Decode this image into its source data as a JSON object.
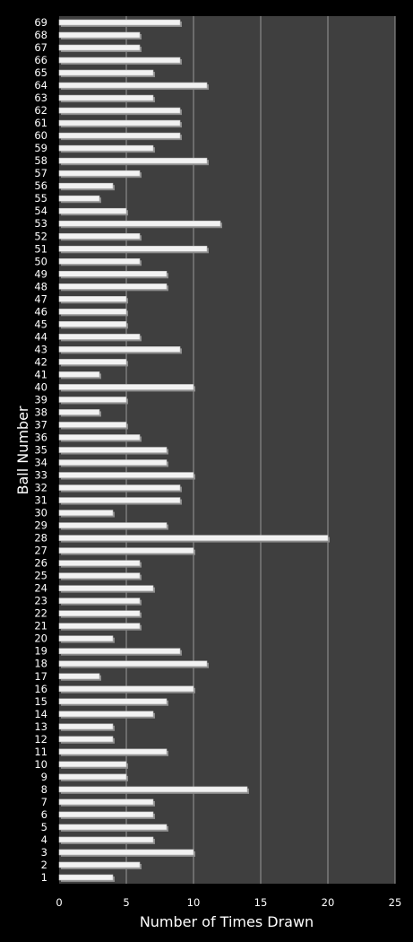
{
  "chart_data": {
    "type": "bar",
    "orientation": "horizontal",
    "xlabel": "Number of Times Drawn",
    "ylabel": "Ball Number",
    "xlim": [
      0,
      25
    ],
    "xticks": [
      0,
      5,
      10,
      15,
      20,
      25
    ],
    "grid": "vertical",
    "legend": "none",
    "colors": {
      "background": "#000000",
      "plot_area": "#3f3f3f",
      "bar": "#f2f2f2",
      "bar_shadow": "#8c8c8c",
      "gridline": "#9a9a9a",
      "text": "#ffffff"
    },
    "categories": [
      "1",
      "2",
      "3",
      "4",
      "5",
      "6",
      "7",
      "8",
      "9",
      "10",
      "11",
      "12",
      "13",
      "14",
      "15",
      "16",
      "17",
      "18",
      "19",
      "20",
      "21",
      "22",
      "23",
      "24",
      "25",
      "26",
      "27",
      "28",
      "29",
      "30",
      "31",
      "32",
      "33",
      "34",
      "35",
      "36",
      "37",
      "38",
      "39",
      "40",
      "41",
      "42",
      "43",
      "44",
      "45",
      "46",
      "47",
      "48",
      "49",
      "50",
      "51",
      "52",
      "53",
      "54",
      "55",
      "56",
      "57",
      "58",
      "59",
      "60",
      "61",
      "62",
      "63",
      "64",
      "65",
      "66",
      "67",
      "68",
      "69"
    ],
    "values": [
      4,
      6,
      10,
      7,
      8,
      7,
      7,
      14,
      5,
      5,
      8,
      4,
      4,
      7,
      8,
      10,
      3,
      11,
      9,
      4,
      6,
      6,
      6,
      7,
      6,
      6,
      10,
      20,
      8,
      4,
      9,
      9,
      10,
      8,
      8,
      6,
      5,
      3,
      5,
      10,
      3,
      5,
      9,
      6,
      5,
      5,
      5,
      8,
      8,
      6,
      11,
      6,
      12,
      5,
      3,
      4,
      6,
      11,
      7,
      9,
      9,
      9,
      7,
      11,
      7,
      9,
      6,
      6,
      9
    ]
  }
}
